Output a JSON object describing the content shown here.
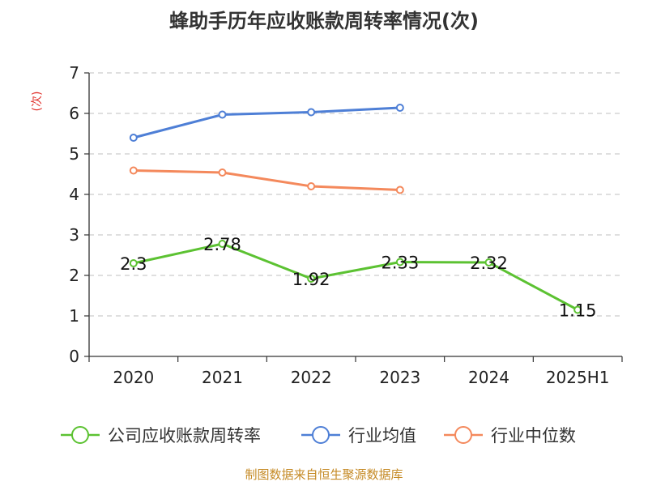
{
  "chart_data": {
    "type": "line",
    "title": "蜂助手历年应收账款周转率情况(次)",
    "ylabel": "(次)",
    "categories": [
      "2020",
      "2021",
      "2022",
      "2023",
      "2024",
      "2025H1"
    ],
    "ylim": [
      0,
      7
    ],
    "yticks": [
      0,
      1,
      2,
      3,
      4,
      5,
      6,
      7
    ],
    "grid": true,
    "legend_position": "bottom",
    "series": [
      {
        "name": "公司应收账款周转率",
        "color": "#5cc232",
        "values": [
          2.3,
          2.78,
          1.92,
          2.33,
          2.32,
          1.15
        ],
        "labels": [
          "2.3",
          "2.78",
          "1.92",
          "2.33",
          "2.32",
          "1.15"
        ]
      },
      {
        "name": "行业均值",
        "color": "#4e7fd6",
        "values": [
          5.4,
          5.97,
          6.03,
          6.14,
          null,
          null
        ]
      },
      {
        "name": "行业中位数",
        "color": "#f4895c",
        "values": [
          4.59,
          4.54,
          4.2,
          4.11,
          null,
          null
        ]
      }
    ]
  },
  "source": "制图数据来自恒生聚源数据库",
  "colors": {
    "axis": "#333333",
    "grid": "#cccccc",
    "ylabel": "#e0302a",
    "source": "#c58a25"
  }
}
